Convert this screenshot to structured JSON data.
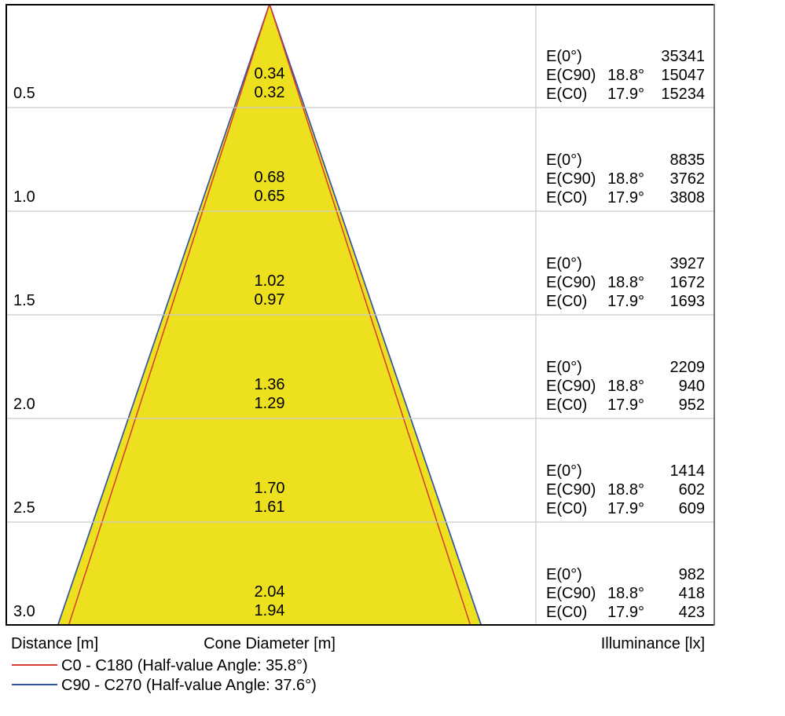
{
  "labels": {
    "distance": "Distance [m]",
    "cone_diameter": "Cone Diameter [m]",
    "illuminance": "Illuminance [lx]"
  },
  "legend": {
    "c0": "C0 - C180 (Half-value Angle: 35.8°)",
    "c90": "C90 - C270 (Half-value Angle: 37.6°)"
  },
  "colors": {
    "cone_fill": "#EDE01E",
    "c0_line": "#D83931",
    "c90_line": "#3553A4",
    "grid_line": "#C9C9C9",
    "outer_border": "#000000",
    "right_border": "#777777"
  },
  "chart_data": {
    "type": "cone-diagram",
    "description": "Photometric light-cone diagram: beam diameter and illuminance vs distance",
    "half_value_angle_c0": 35.8,
    "half_value_angle_c90": 37.6,
    "distances_m": [
      0.5,
      1.0,
      1.5,
      2.0,
      2.5,
      3.0
    ],
    "illuminance_labels": {
      "e0": "E(0°)",
      "ec90": "E(C90)",
      "ec0": "E(C0)"
    },
    "angles": {
      "c90": "18.8°",
      "c0": "17.9°"
    },
    "rows": [
      {
        "distance": "0.5",
        "diameter_c90": "0.34",
        "diameter_c0": "0.32",
        "e0": "35341",
        "ec90": "15047",
        "ec0": "15234"
      },
      {
        "distance": "1.0",
        "diameter_c90": "0.68",
        "diameter_c0": "0.65",
        "e0": "8835",
        "ec90": "3762",
        "ec0": "3808"
      },
      {
        "distance": "1.5",
        "diameter_c90": "1.02",
        "diameter_c0": "0.97",
        "e0": "3927",
        "ec90": "1672",
        "ec0": "1693"
      },
      {
        "distance": "2.0",
        "diameter_c90": "1.36",
        "diameter_c0": "1.29",
        "e0": "2209",
        "ec90": "940",
        "ec0": "952"
      },
      {
        "distance": "2.5",
        "diameter_c90": "1.70",
        "diameter_c0": "1.61",
        "e0": "1414",
        "ec90": "602",
        "ec0": "609"
      },
      {
        "distance": "3.0",
        "diameter_c90": "2.04",
        "diameter_c0": "1.94",
        "e0": "982",
        "ec90": "418",
        "ec0": "423"
      }
    ],
    "xlabel": "Cone Diameter [m]",
    "ylabel": "Distance [m]",
    "value_label": "Illuminance [lx]",
    "grid": true,
    "legend_position": "bottom-left"
  }
}
